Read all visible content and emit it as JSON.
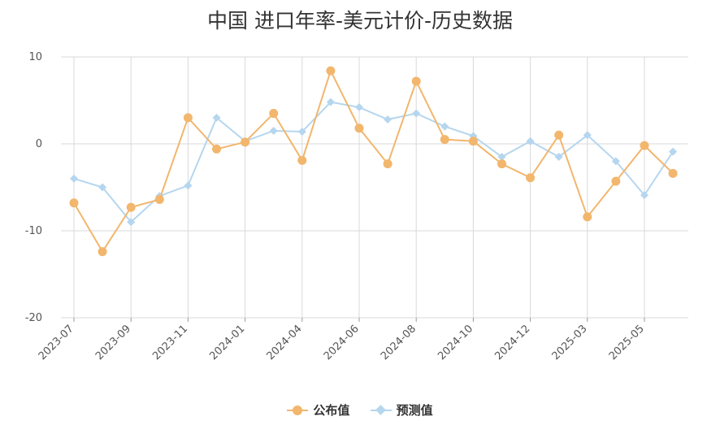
{
  "title": "中国 进口年率-美元计价-历史数据",
  "colors": {
    "actual": "#F2B66D",
    "forecast": "#B5D6EE",
    "grid": "#D9D9D9",
    "text": "#333333"
  },
  "chart_data": {
    "type": "line",
    "title": "中国 进口年率-美元计价-历史数据",
    "xlabel": "",
    "ylabel": "",
    "ylim": [
      -20,
      10
    ],
    "yticks": [
      10,
      0,
      -10,
      -20
    ],
    "grid": true,
    "legend_position": "bottom-center",
    "x_tick_labels": [
      "2023-07",
      "2023-09",
      "2023-11",
      "2024-01",
      "2024-04",
      "2024-06",
      "2024-08",
      "2024-10",
      "2024-12",
      "2025-03",
      "2025-05"
    ],
    "x_tick_index": [
      0,
      2,
      4,
      6,
      8,
      10,
      12,
      14,
      16,
      18,
      20
    ],
    "series": [
      {
        "name": "公布值",
        "values": [
          -6.8,
          -12.4,
          -7.3,
          -6.4,
          3.0,
          -0.6,
          0.2,
          3.5,
          -1.9,
          8.4,
          1.8,
          -2.3,
          7.2,
          0.5,
          0.3,
          -2.3,
          -3.9,
          1.0,
          -8.4,
          -4.3,
          -0.2,
          -3.4
        ]
      },
      {
        "name": "预测值",
        "values": [
          -4.0,
          -5.0,
          -9.0,
          -6.0,
          -4.8,
          3.0,
          0.3,
          1.5,
          1.4,
          4.8,
          4.2,
          2.8,
          3.5,
          2.0,
          0.9,
          -1.5,
          0.3,
          -1.5,
          1.0,
          -2.0,
          -5.9,
          -0.9
        ]
      }
    ]
  }
}
